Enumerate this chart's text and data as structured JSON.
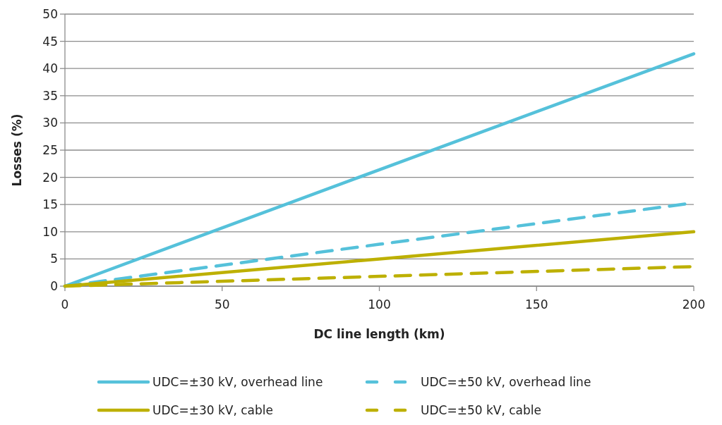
{
  "chart_data": {
    "type": "line",
    "xlabel": "DC line length (km)",
    "ylabel": "Losses (%)",
    "x": [
      0,
      100,
      200
    ],
    "series": [
      {
        "name": "UDC=±30 kV, overhead line",
        "color": "#55c1da",
        "values": [
          0,
          21.4,
          42.7
        ],
        "line_style": "solid"
      },
      {
        "name": "UDC=±50 kV, overhead line",
        "color": "#55c1da",
        "values": [
          0,
          7.7,
          15.3
        ],
        "line_style": "dashed"
      },
      {
        "name": "UDC=±30 kV, cable",
        "color": "#bdb000",
        "values": [
          0,
          5,
          10
        ],
        "line_style": "solid"
      },
      {
        "name": "UDC=±50 kV, cable",
        "color": "#bdb000",
        "values": [
          0,
          1.8,
          3.6
        ],
        "line_style": "dashed"
      }
    ],
    "xlim": [
      0,
      200
    ],
    "xticks": [
      0,
      50,
      100,
      150,
      200
    ],
    "ylim": [
      0,
      50
    ],
    "yticks": [
      0,
      5,
      10,
      15,
      20,
      25,
      30,
      35,
      40,
      45,
      50
    ],
    "grid": "y",
    "legend": "bottom",
    "marker": "none"
  }
}
